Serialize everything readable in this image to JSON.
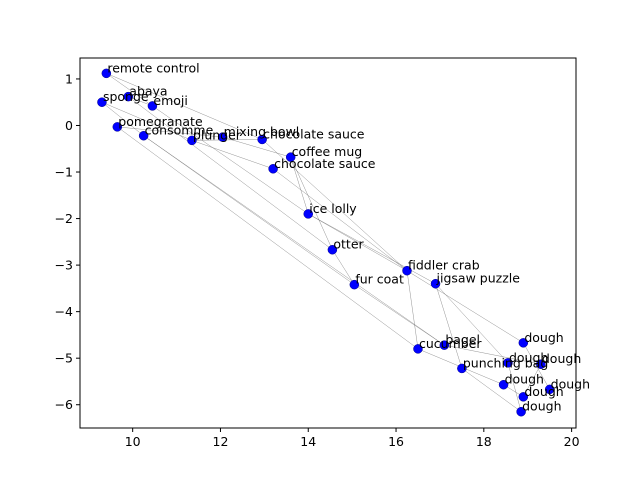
{
  "chart_data": {
    "type": "scatter",
    "title": "",
    "xlabel": "",
    "ylabel": "",
    "xlim": [
      8.8,
      20.1
    ],
    "ylim": [
      -6.5,
      1.45
    ],
    "xticks": [
      10,
      12,
      14,
      16,
      18,
      20
    ],
    "yticks": [
      1,
      0,
      -1,
      -2,
      -3,
      -4,
      -5,
      -6
    ],
    "grid": false,
    "marker_color": "#0000ff",
    "line_color": "#808080",
    "points": [
      {
        "label": "remote control",
        "x": 9.4,
        "y": 1.12
      },
      {
        "label": "abaya",
        "x": 9.9,
        "y": 0.62
      },
      {
        "label": "sponge",
        "x": 9.3,
        "y": 0.5
      },
      {
        "label": "emoji",
        "x": 10.45,
        "y": 0.42
      },
      {
        "label": "pomegranate",
        "x": 9.65,
        "y": -0.03
      },
      {
        "label": "consomme",
        "x": 10.25,
        "y": -0.22
      },
      {
        "label": "plunger",
        "x": 11.35,
        "y": -0.32
      },
      {
        "label": "mixing bowl",
        "x": 12.05,
        "y": -0.25
      },
      {
        "label": "chocolate sauce",
        "x": 12.95,
        "y": -0.3
      },
      {
        "label": "coffee mug",
        "x": 13.6,
        "y": -0.68
      },
      {
        "label": "chocolate sauce",
        "x": 13.2,
        "y": -0.93
      },
      {
        "label": "ice lolly",
        "x": 14.0,
        "y": -1.9
      },
      {
        "label": "otter",
        "x": 14.55,
        "y": -2.67
      },
      {
        "label": "fiddler crab",
        "x": 16.25,
        "y": -3.12
      },
      {
        "label": "jigsaw puzzle",
        "x": 16.9,
        "y": -3.4
      },
      {
        "label": "fur coat",
        "x": 15.05,
        "y": -3.42
      },
      {
        "label": "bagel",
        "x": 17.1,
        "y": -4.72
      },
      {
        "label": "cucumber",
        "x": 16.5,
        "y": -4.8
      },
      {
        "label": "dough",
        "x": 18.9,
        "y": -4.67
      },
      {
        "label": "dough",
        "x": 18.55,
        "y": -5.1
      },
      {
        "label": "dough",
        "x": 19.3,
        "y": -5.13
      },
      {
        "label": "punching bag",
        "x": 17.5,
        "y": -5.22
      },
      {
        "label": "dough",
        "x": 18.45,
        "y": -5.57
      },
      {
        "label": "dough",
        "x": 19.5,
        "y": -5.67
      },
      {
        "label": "dough",
        "x": 18.9,
        "y": -5.83
      },
      {
        "label": "dough",
        "x": 18.85,
        "y": -6.15
      }
    ],
    "edges": [
      [
        0,
        3
      ],
      [
        0,
        8
      ],
      [
        2,
        5
      ],
      [
        2,
        6
      ],
      [
        1,
        12
      ],
      [
        1,
        3
      ],
      [
        4,
        7
      ],
      [
        4,
        17
      ],
      [
        5,
        15
      ],
      [
        5,
        16
      ],
      [
        3,
        11
      ],
      [
        6,
        10
      ],
      [
        7,
        9
      ],
      [
        8,
        13
      ],
      [
        9,
        11
      ],
      [
        11,
        14
      ],
      [
        11,
        13
      ],
      [
        12,
        15
      ],
      [
        13,
        18
      ],
      [
        13,
        17
      ],
      [
        14,
        21
      ],
      [
        14,
        19
      ],
      [
        15,
        16
      ],
      [
        16,
        20
      ],
      [
        17,
        22
      ],
      [
        18,
        23
      ],
      [
        19,
        25
      ],
      [
        20,
        24
      ],
      [
        21,
        25
      ],
      [
        22,
        24
      ],
      [
        9,
        12
      ],
      [
        10,
        13
      ],
      [
        6,
        8
      ]
    ]
  }
}
